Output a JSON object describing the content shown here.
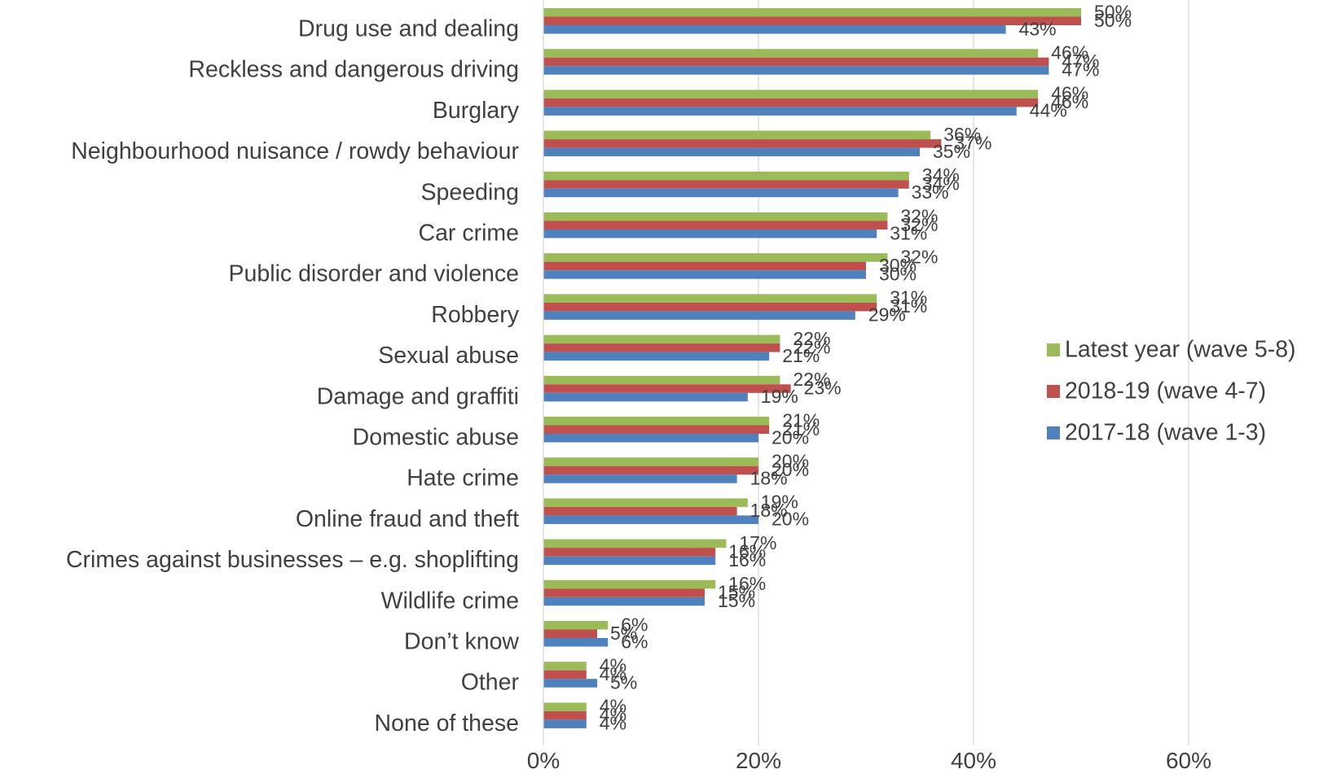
{
  "chart_data": {
    "type": "bar",
    "orientation": "horizontal",
    "title": "",
    "xlabel": "",
    "ylabel": "",
    "xlim": [
      0,
      70
    ],
    "x_ticks": [
      0,
      20,
      40,
      60
    ],
    "tick_format": "percent",
    "grid": "vertical",
    "legend_position": "right",
    "categories": [
      "Drug use and dealing",
      "Reckless and dangerous driving",
      "Burglary",
      "Neighbourhood nuisance / rowdy behaviour",
      "Speeding",
      "Car crime",
      "Public disorder and violence",
      "Robbery",
      "Sexual abuse",
      "Damage and graffiti",
      "Domestic abuse",
      "Hate crime",
      "Online fraud and theft",
      "Crimes against businesses – e.g. shoplifting",
      "Wildlife crime",
      "Don’t know",
      "Other",
      "None of these"
    ],
    "series": [
      {
        "name": "Latest year (wave 5-8)",
        "color": "#9BBB59",
        "values": [
          50,
          46,
          46,
          36,
          34,
          32,
          32,
          31,
          22,
          22,
          21,
          20,
          19,
          17,
          16,
          6,
          4,
          4
        ]
      },
      {
        "name": "2018-19 (wave 4-7)",
        "color": "#C0504D",
        "values": [
          50,
          47,
          46,
          37,
          34,
          32,
          30,
          31,
          22,
          23,
          21,
          20,
          18,
          16,
          15,
          5,
          4,
          4
        ]
      },
      {
        "name": "2017-18 (wave 1-3)",
        "color": "#4F81BD",
        "values": [
          43,
          47,
          44,
          35,
          33,
          31,
          30,
          29,
          21,
          19,
          20,
          18,
          20,
          16,
          15,
          6,
          5,
          4
        ]
      }
    ]
  }
}
